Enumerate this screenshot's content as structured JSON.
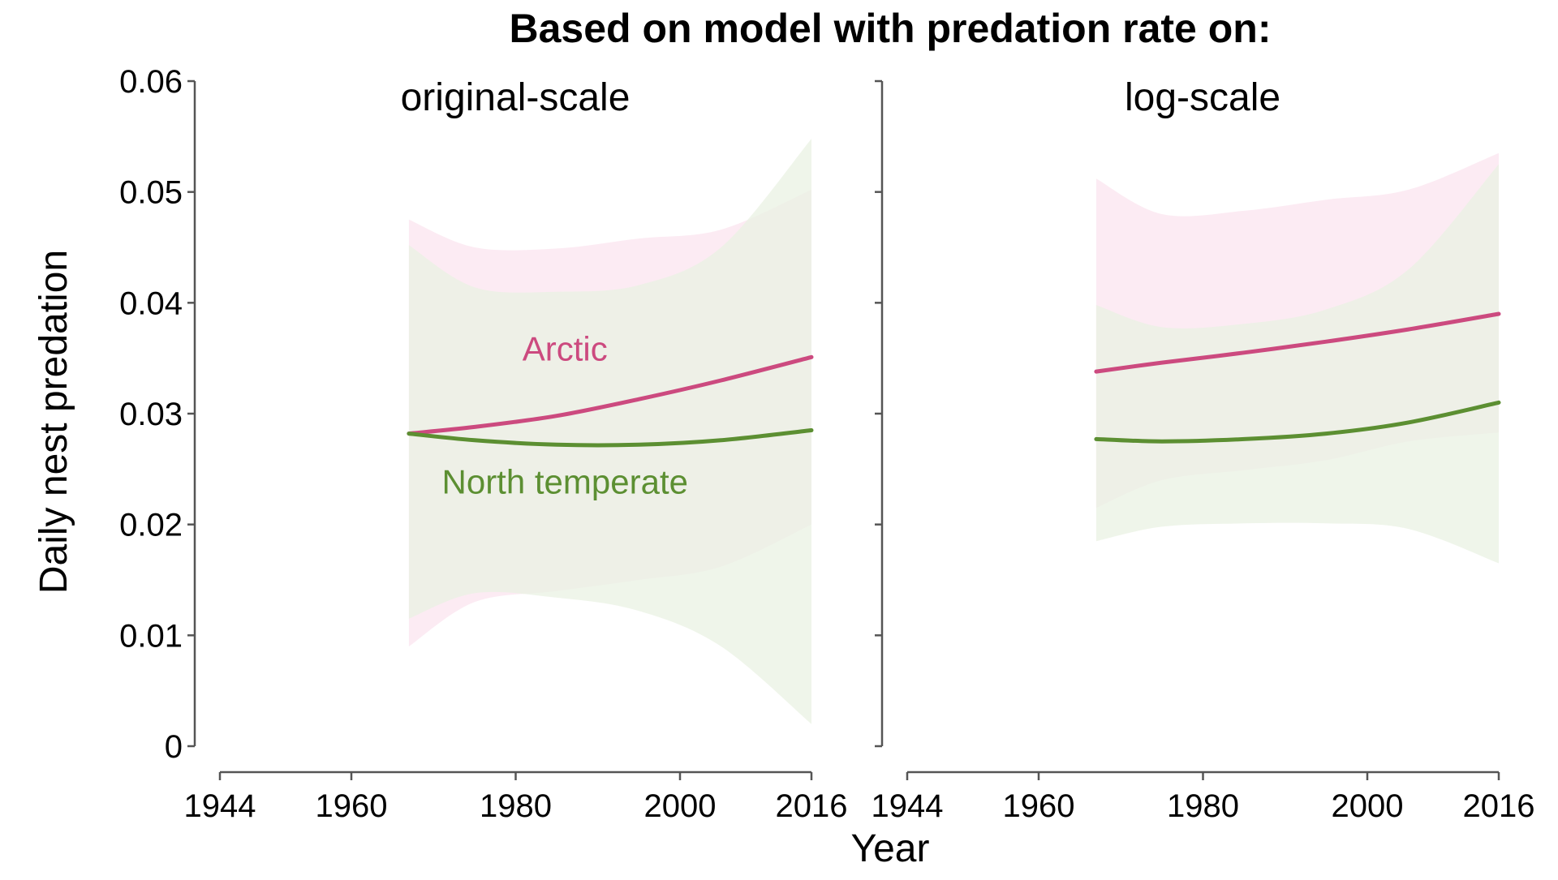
{
  "figure": {
    "title": "Based on model with predation rate on:",
    "ylabel": "Daily nest predation",
    "xlabel": "Year"
  },
  "colors": {
    "arctic": "#cc4a7f",
    "arctic_band": "#fbe4ef",
    "temperate": "#5c8f32",
    "temperate_band": "#e9f1e3",
    "overlap_band": "#ece2df"
  },
  "chart_data": [
    {
      "type": "line",
      "panel_title": "original-scale",
      "xlim": [
        1944,
        2016
      ],
      "ylim": [
        0,
        0.06
      ],
      "x_ticks": [
        1944,
        1960,
        1980,
        2000,
        2016
      ],
      "y_ticks": [
        0,
        0.01,
        0.02,
        0.03,
        0.04,
        0.05,
        0.06
      ],
      "y_tick_labels": [
        "0",
        "0.01",
        "0.02",
        "0.03",
        "0.04",
        "0.05",
        "0.06"
      ],
      "series": [
        {
          "name": "Arctic",
          "key": "arctic",
          "label_at": [
            1986,
            0.0348
          ],
          "x": [
            1967,
            1975,
            1985,
            1995,
            2005,
            2016
          ],
          "y": [
            0.0282,
            0.0288,
            0.0298,
            0.0313,
            0.033,
            0.0351
          ],
          "lower": [
            0.009,
            0.013,
            0.014,
            0.015,
            0.0162,
            0.02
          ],
          "upper": [
            0.0475,
            0.045,
            0.0449,
            0.0458,
            0.0466,
            0.0502
          ]
        },
        {
          "name": "North temperate",
          "key": "temperate",
          "label_at": [
            1986,
            0.0228
          ],
          "x": [
            1967,
            1975,
            1985,
            1995,
            2005,
            2016
          ],
          "y": [
            0.0282,
            0.0276,
            0.0272,
            0.0272,
            0.0276,
            0.0285
          ],
          "lower": [
            0.0115,
            0.0138,
            0.0134,
            0.0122,
            0.009,
            0.002
          ],
          "upper": [
            0.0452,
            0.0414,
            0.041,
            0.0416,
            0.045,
            0.0548
          ]
        }
      ]
    },
    {
      "type": "line",
      "panel_title": "log-scale",
      "xlim": [
        1944,
        2016
      ],
      "ylim": [
        0,
        0.06
      ],
      "x_ticks": [
        1944,
        1960,
        1980,
        2000,
        2016
      ],
      "series": [
        {
          "name": "",
          "key": "arctic",
          "x": [
            1967,
            1975,
            1985,
            1995,
            2005,
            2016
          ],
          "y": [
            0.0338,
            0.0346,
            0.0355,
            0.0365,
            0.0376,
            0.039
          ],
          "lower": [
            0.0215,
            0.024,
            0.0249,
            0.0258,
            0.0275,
            0.0283
          ],
          "upper": [
            0.0512,
            0.048,
            0.0483,
            0.0493,
            0.0502,
            0.0535
          ]
        },
        {
          "name": "",
          "key": "temperate",
          "x": [
            1967,
            1975,
            1985,
            1995,
            2005,
            2016
          ],
          "y": [
            0.0277,
            0.0275,
            0.0277,
            0.0282,
            0.0292,
            0.031
          ],
          "lower": [
            0.0185,
            0.0198,
            0.0201,
            0.0201,
            0.0196,
            0.0165
          ],
          "upper": [
            0.0398,
            0.0378,
            0.0381,
            0.0394,
            0.043,
            0.0525
          ]
        }
      ]
    }
  ]
}
